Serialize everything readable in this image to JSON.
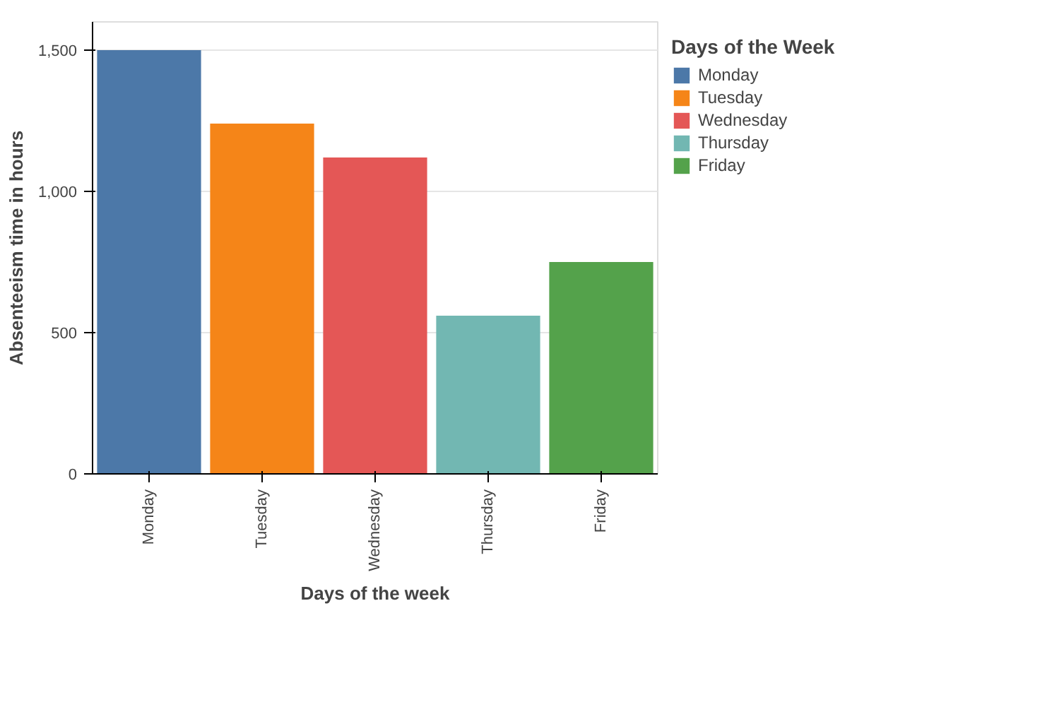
{
  "chart_data": {
    "type": "bar",
    "xlabel": "Days of the week",
    "ylabel": "Absenteeism time in hours",
    "legend_title": "Days of the Week",
    "categories": [
      "Monday",
      "Tuesday",
      "Wednesday",
      "Thursday",
      "Friday"
    ],
    "series": [
      {
        "name": "Monday",
        "color": "#4c78a8",
        "values": [
          1500,
          null,
          null,
          null,
          null
        ]
      },
      {
        "name": "Tuesday",
        "color": "#f58518",
        "values": [
          null,
          1240,
          null,
          null,
          null
        ]
      },
      {
        "name": "Wednesday",
        "color": "#e45756",
        "values": [
          null,
          null,
          1120,
          null,
          null
        ]
      },
      {
        "name": "Thursday",
        "color": "#72b7b2",
        "values": [
          null,
          null,
          null,
          560,
          null
        ]
      },
      {
        "name": "Friday",
        "color": "#54a24b",
        "values": [
          null,
          null,
          null,
          null,
          750
        ]
      }
    ],
    "ylim": [
      0,
      1600
    ],
    "yticks": [
      0,
      {
        "value": 500,
        "label": "500"
      },
      {
        "value": 1000,
        "label": "1,000"
      },
      {
        "value": 1500,
        "label": "1,500"
      }
    ],
    "grid": "y",
    "legend": "top right"
  }
}
